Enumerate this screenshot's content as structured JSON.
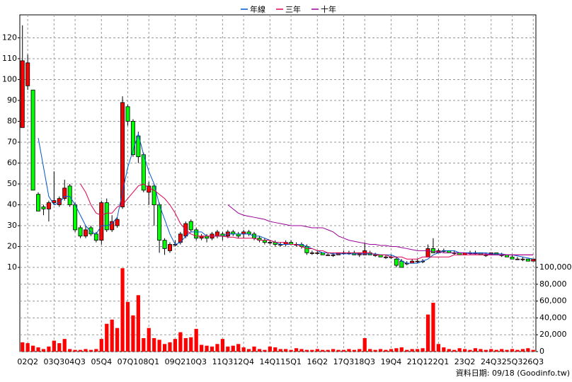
{
  "chart_data": {
    "type": "candlestick",
    "footer": "資料日期: 09/18 (Goodinfo.tw)",
    "categories": [
      null,
      "02Q2",
      null,
      null,
      null,
      null,
      "03Q3",
      null,
      null,
      null,
      "04Q3",
      null,
      null,
      null,
      null,
      "05Q4",
      null,
      null,
      null,
      null,
      "07Q1",
      null,
      null,
      null,
      "08Q1",
      null,
      null,
      null,
      null,
      "09Q2",
      null,
      null,
      null,
      "10Q3",
      null,
      null,
      null,
      null,
      "11Q3",
      null,
      null,
      null,
      "12Q4",
      null,
      null,
      null,
      null,
      "14Q1",
      null,
      null,
      null,
      "15Q1",
      null,
      null,
      null,
      null,
      "16Q2",
      null,
      null,
      null,
      null,
      "17Q3",
      null,
      null,
      null,
      "18Q3",
      null,
      null,
      null,
      null,
      "19Q4",
      null,
      null,
      null,
      null,
      "21Q1",
      null,
      null,
      null,
      "22Q1",
      null,
      null,
      null,
      null,
      "23Q2",
      null,
      null,
      null,
      null,
      "24Q3",
      null,
      null,
      null,
      "25Q3",
      null,
      null,
      null,
      "26Q3"
    ],
    "open": [
      77,
      97,
      95,
      45,
      39,
      38,
      41,
      40,
      43,
      49,
      40,
      29,
      25,
      29,
      26,
      23,
      41,
      28,
      30,
      39,
      87,
      80,
      73,
      64,
      46,
      49,
      40,
      23,
      18,
      21,
      22,
      25,
      32,
      28,
      24,
      25,
      24,
      25,
      26,
      25,
      27,
      26,
      26,
      27,
      26,
      24,
      23,
      22,
      22,
      21,
      21,
      22,
      21,
      21,
      20,
      17,
      17,
      17,
      16,
      16,
      16,
      17,
      17,
      17,
      16,
      16,
      17,
      16,
      16,
      15,
      15,
      14,
      13,
      12,
      12,
      13,
      13,
      15,
      19,
      17,
      18,
      18,
      17,
      17,
      16,
      17,
      17,
      17,
      16,
      16,
      17,
      16,
      16,
      15,
      14,
      14,
      14,
      13
    ],
    "high": [
      126,
      112,
      95,
      46,
      40,
      42,
      56,
      44,
      52,
      50,
      41,
      30,
      30,
      30,
      27,
      42,
      43,
      35,
      34,
      92,
      88,
      81,
      75,
      65,
      51,
      50,
      41,
      24,
      22,
      23,
      27,
      32,
      33,
      29,
      26,
      26,
      27,
      28,
      27,
      28,
      28,
      27,
      28,
      28,
      27,
      25,
      24,
      23,
      23,
      22,
      23,
      23,
      22,
      22,
      21,
      18,
      18,
      17,
      17,
      17,
      17,
      18,
      18,
      18,
      17,
      22,
      18,
      17,
      16,
      16,
      16,
      15,
      14,
      13,
      14,
      14,
      14,
      21,
      24,
      19,
      19,
      18,
      18,
      17,
      17,
      18,
      18,
      17,
      17,
      17,
      17,
      17,
      16,
      16,
      15,
      15,
      14,
      14
    ],
    "low": [
      77,
      95,
      47,
      37,
      35,
      32,
      40,
      39,
      42,
      39,
      27,
      24,
      24,
      25,
      22,
      21,
      27,
      27,
      29,
      38,
      78,
      63,
      60,
      46,
      40,
      30,
      17,
      16,
      17,
      20,
      21,
      24,
      27,
      23,
      23,
      22,
      23,
      24,
      23,
      24,
      25,
      24,
      24,
      25,
      23,
      22,
      21,
      21,
      20,
      20,
      20,
      21,
      20,
      19,
      16,
      16,
      16,
      16,
      16,
      15,
      16,
      16,
      16,
      16,
      15,
      16,
      16,
      15,
      15,
      14,
      14,
      10,
      10,
      11,
      12,
      12,
      12,
      15,
      17,
      17,
      17,
      17,
      16,
      16,
      16,
      16,
      16,
      16,
      15,
      16,
      16,
      15,
      15,
      14,
      14,
      13,
      13,
      13
    ],
    "close": [
      109,
      108,
      47,
      37,
      38,
      41,
      42,
      43,
      48,
      40,
      28,
      25,
      28,
      26,
      23,
      41,
      28,
      32,
      33,
      89,
      80,
      64,
      63,
      47,
      49,
      40,
      23,
      19,
      21,
      21,
      26,
      31,
      28,
      24,
      25,
      24,
      26,
      27,
      25,
      27,
      26,
      25,
      27,
      26,
      24,
      23,
      22,
      22,
      21,
      21,
      22,
      21,
      21,
      20,
      17,
      17,
      17,
      16,
      16,
      16,
      17,
      17,
      17,
      16,
      17,
      18,
      16,
      16,
      15,
      15,
      15,
      11,
      10,
      12,
      13,
      13,
      13,
      19,
      17,
      18,
      18,
      17,
      17,
      16,
      17,
      17,
      17,
      16,
      16,
      17,
      16,
      16,
      15,
      14,
      14,
      14,
      13,
      14
    ],
    "up_color": "#ff0000",
    "down_color": "#00ff00",
    "ylim": [
      10,
      131
    ],
    "yticks": [
      10,
      20,
      30,
      40,
      50,
      60,
      70,
      80,
      90,
      100,
      110,
      120
    ],
    "grid": true,
    "series": [
      {
        "name": "年線",
        "color": "#0055cc",
        "values": [
          null,
          null,
          null,
          72,
          58,
          44,
          40,
          41,
          44,
          44,
          40,
          35,
          30,
          27,
          26,
          30,
          30,
          31,
          34,
          46,
          58,
          66,
          74,
          64,
          56,
          50,
          40,
          33,
          26,
          21,
          22,
          25,
          27,
          27,
          27,
          25,
          25,
          25,
          25,
          26,
          26,
          26,
          26,
          26,
          25,
          25,
          24,
          23,
          22,
          21,
          21,
          21,
          21,
          21,
          20,
          19,
          18,
          17,
          17,
          16.5,
          16.5,
          16.5,
          16.5,
          16.5,
          16.5,
          16.5,
          16.5,
          16.5,
          16,
          16,
          16,
          15,
          13,
          12,
          12,
          12,
          13,
          14,
          16,
          17,
          18,
          18,
          18,
          17,
          17,
          17,
          17,
          17,
          17,
          16.5,
          16.5,
          16.5,
          16,
          16,
          15.5,
          15,
          14.5,
          14
        ]
      },
      {
        "name": "三年",
        "color": "#dd0055",
        "values": [
          null,
          null,
          null,
          null,
          null,
          null,
          null,
          null,
          null,
          null,
          null,
          50,
          46,
          40,
          36,
          35,
          36,
          36,
          39,
          40,
          43,
          46,
          49,
          50,
          48,
          47,
          45,
          43,
          40,
          36,
          31,
          28,
          26,
          25,
          25,
          25,
          25,
          25,
          25,
          24.5,
          24.5,
          24,
          24,
          24,
          24,
          23,
          23,
          23,
          22,
          22,
          22,
          21,
          21,
          20,
          19,
          19,
          18,
          18,
          17,
          17,
          17,
          17,
          17,
          17,
          17,
          17,
          17,
          16,
          16,
          16,
          15,
          15,
          15,
          14,
          14,
          14,
          15,
          15,
          15,
          15,
          15,
          15,
          16,
          16,
          16,
          16,
          16,
          16,
          16,
          16,
          16,
          16,
          16,
          16,
          16,
          16,
          16,
          16
        ]
      },
      {
        "name": "十年",
        "color": "#990099",
        "values": [
          null,
          null,
          null,
          null,
          null,
          null,
          null,
          null,
          null,
          null,
          null,
          null,
          null,
          null,
          null,
          null,
          null,
          null,
          null,
          null,
          null,
          null,
          null,
          null,
          null,
          null,
          null,
          null,
          null,
          null,
          null,
          null,
          null,
          null,
          null,
          null,
          null,
          null,
          null,
          40,
          38,
          36,
          35,
          34.5,
          34,
          33.5,
          33,
          32,
          31.5,
          31,
          30.5,
          30,
          30,
          30,
          29.5,
          29,
          29,
          29,
          28,
          27,
          25,
          24,
          23,
          22.5,
          22,
          21.5,
          21,
          21,
          20.5,
          20.5,
          20,
          20,
          19.5,
          19,
          18.5,
          18,
          18,
          18,
          17.5,
          17.5,
          17,
          17,
          17,
          17,
          17,
          16.5,
          16.5,
          16.5,
          16.5,
          16,
          16,
          16,
          16,
          16,
          16,
          16,
          16,
          16
        ]
      }
    ],
    "volume": {
      "color": "#ff0000",
      "values": [
        11000,
        10000,
        7000,
        5000,
        3000,
        6000,
        13000,
        10000,
        15000,
        3000,
        2000,
        2000,
        3000,
        2000,
        3000,
        15000,
        33000,
        38000,
        28000,
        99000,
        59000,
        43000,
        67000,
        16000,
        28000,
        16000,
        14000,
        9000,
        11000,
        15000,
        23000,
        16000,
        17000,
        27000,
        8000,
        7000,
        6000,
        9000,
        15000,
        6000,
        7000,
        9000,
        5000,
        3000,
        6000,
        3000,
        2000,
        6000,
        5000,
        3000,
        3000,
        2000,
        4000,
        3000,
        2000,
        2000,
        3000,
        2000,
        2000,
        3000,
        2000,
        2000,
        3000,
        2000,
        3000,
        16000,
        3000,
        2000,
        3000,
        2000,
        3000,
        4000,
        5000,
        2000,
        3000,
        3000,
        4000,
        44000,
        58000,
        9000,
        5000,
        3000,
        2000,
        4000,
        3000,
        2000,
        4000,
        3000,
        2000,
        3000,
        2000,
        3000,
        2000,
        3000,
        2000,
        3000,
        4000,
        2000
      ],
      "ylim": [
        0,
        100000
      ],
      "yticks": [
        0,
        {
          "value": 20000,
          "label": "20,000"
        },
        {
          "value": 40000,
          "label": "40,000"
        },
        {
          "value": 60000,
          "label": "60,000"
        },
        {
          "value": 80000,
          "label": "80,000"
        },
        {
          "value": 100000,
          "label": "100,000"
        }
      ]
    }
  }
}
